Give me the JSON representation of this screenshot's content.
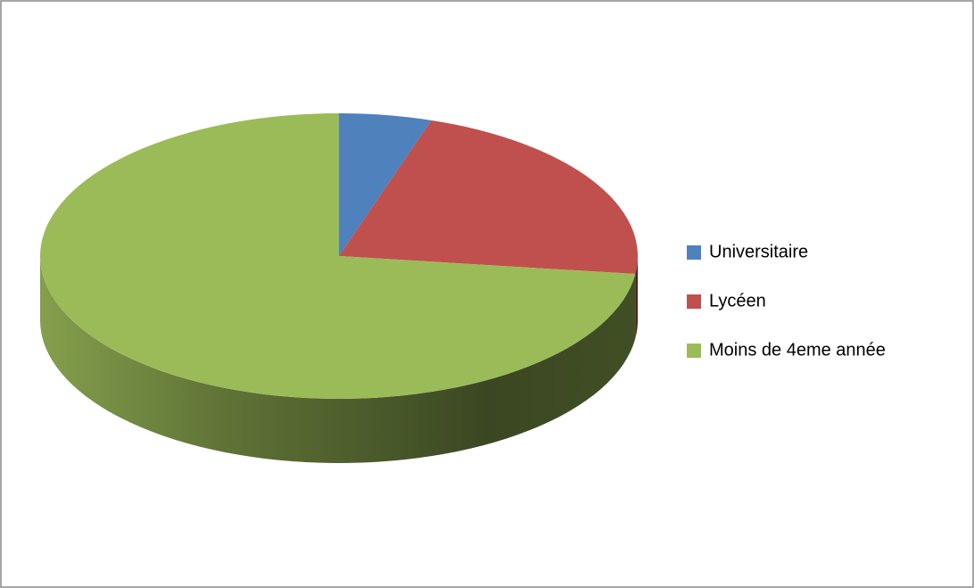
{
  "chart_data": {
    "type": "pie",
    "categories": [
      "Universitaire",
      "Lycéen",
      "Moins de 4eme année"
    ],
    "values": [
      5,
      22,
      73
    ],
    "colors": [
      "#4f81bd",
      "#c0504d",
      "#9bbb59"
    ],
    "three_d": true
  }
}
